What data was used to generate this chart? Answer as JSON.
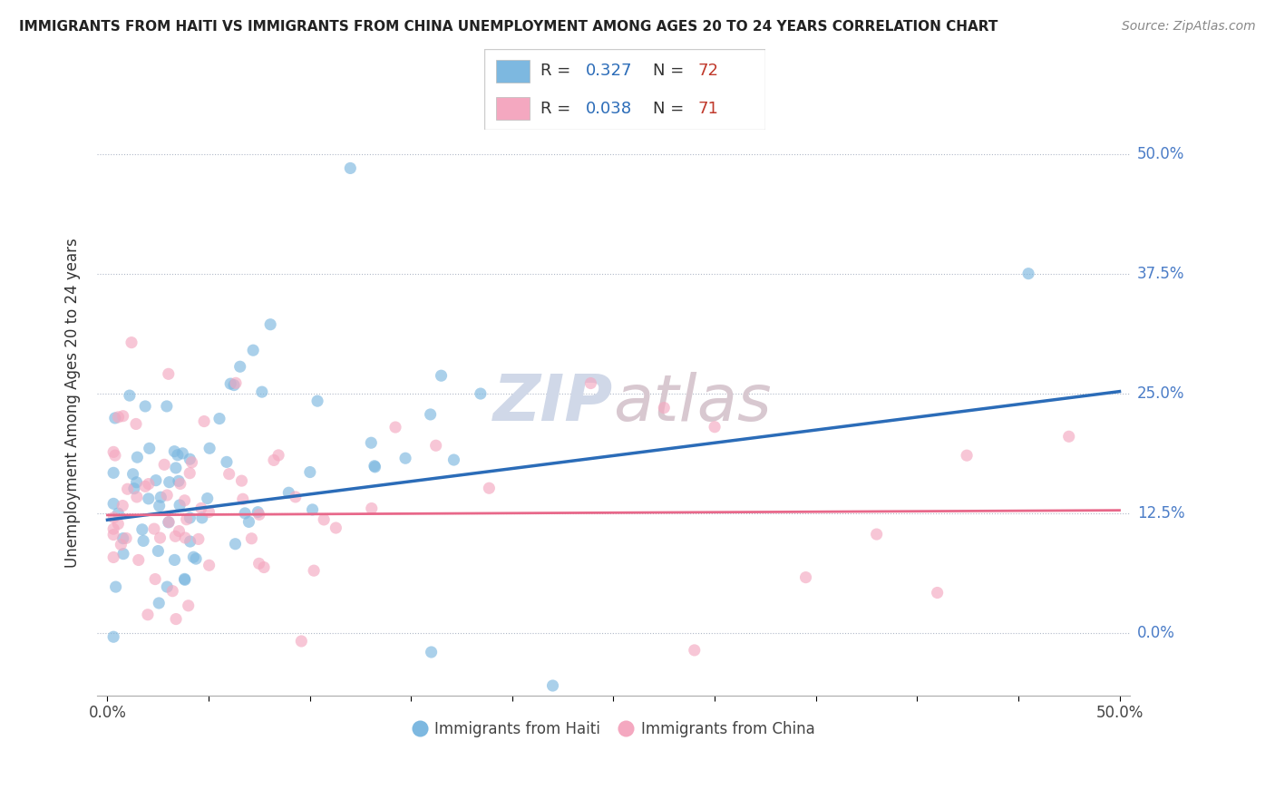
{
  "title": "IMMIGRANTS FROM HAITI VS IMMIGRANTS FROM CHINA UNEMPLOYMENT AMONG AGES 20 TO 24 YEARS CORRELATION CHART",
  "source": "Source: ZipAtlas.com",
  "ylabel": "Unemployment Among Ages 20 to 24 years",
  "haiti_color": "#7db8e0",
  "china_color": "#f4a8c0",
  "haiti_line_color": "#2b6cb8",
  "china_line_color": "#e8688a",
  "haiti_R": 0.327,
  "haiti_N": 72,
  "china_R": 0.038,
  "china_N": 71,
  "ytick_right_color": "#4a7cc7",
  "background_color": "#ffffff",
  "watermark_color": "#d0d8e8",
  "watermark_color2": "#d8c8d0",
  "haiti_line_y0": 0.118,
  "haiti_line_y1": 0.252,
  "china_line_y0": 0.123,
  "china_line_y1": 0.128,
  "xlim": [
    -0.005,
    0.505
  ],
  "ylim": [
    -0.065,
    0.545
  ],
  "ytick_values": [
    0.0,
    0.125,
    0.25,
    0.375,
    0.5
  ],
  "ytick_labels": [
    "0.0%",
    "12.5%",
    "25.0%",
    "37.5%",
    "50.0%"
  ],
  "xtick_values": [
    0.0,
    0.05,
    0.1,
    0.15,
    0.2,
    0.25,
    0.3,
    0.35,
    0.4,
    0.45,
    0.5
  ],
  "xtick_labels": [
    "0.0%",
    "",
    "",
    "",
    "",
    "",
    "",
    "",
    "",
    "",
    "50.0%"
  ]
}
